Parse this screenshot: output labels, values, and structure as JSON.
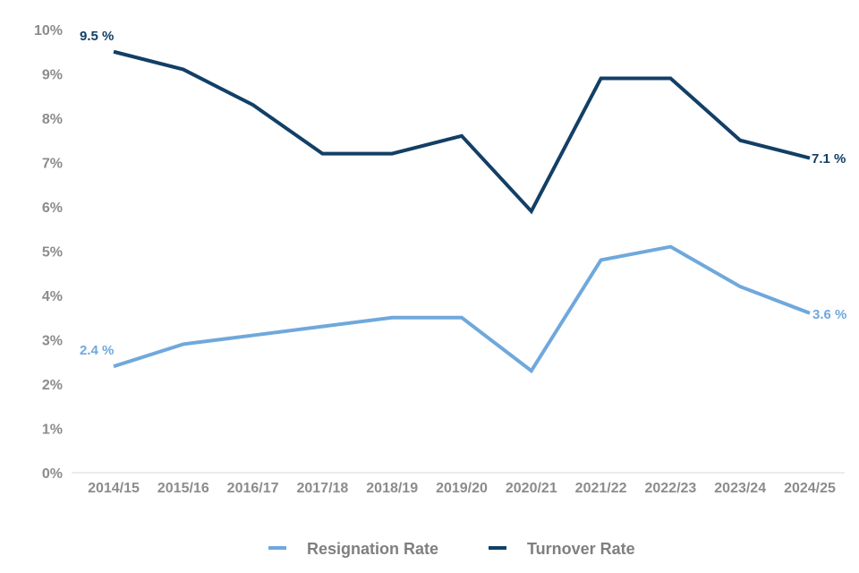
{
  "chart_data": {
    "type": "line",
    "categories": [
      "2014/15",
      "2015/16",
      "2016/17",
      "2017/18",
      "2018/19",
      "2019/20",
      "2020/21",
      "2021/22",
      "2022/23",
      "2023/24",
      "2024/25"
    ],
    "series": [
      {
        "name": "Resignation Rate",
        "color": "#6fa8dc",
        "values": [
          2.4,
          2.9,
          3.1,
          3.3,
          3.5,
          3.5,
          2.3,
          4.8,
          5.1,
          4.2,
          3.6
        ]
      },
      {
        "name": "Turnover Rate",
        "color": "#123f66",
        "values": [
          9.5,
          9.1,
          8.3,
          7.2,
          7.2,
          7.6,
          5.9,
          8.9,
          8.9,
          7.5,
          7.1
        ]
      }
    ],
    "y_ticks": [
      "0%",
      "1%",
      "2%",
      "3%",
      "4%",
      "5%",
      "6%",
      "7%",
      "8%",
      "9%",
      "10%"
    ],
    "ylim": [
      0,
      10
    ],
    "grid": false,
    "legend_position": "bottom",
    "data_labels": {
      "resignation_start": "2.4 %",
      "resignation_end": "3.6 %",
      "turnover_start": "9.5 %",
      "turnover_end": "7.1 %"
    }
  }
}
